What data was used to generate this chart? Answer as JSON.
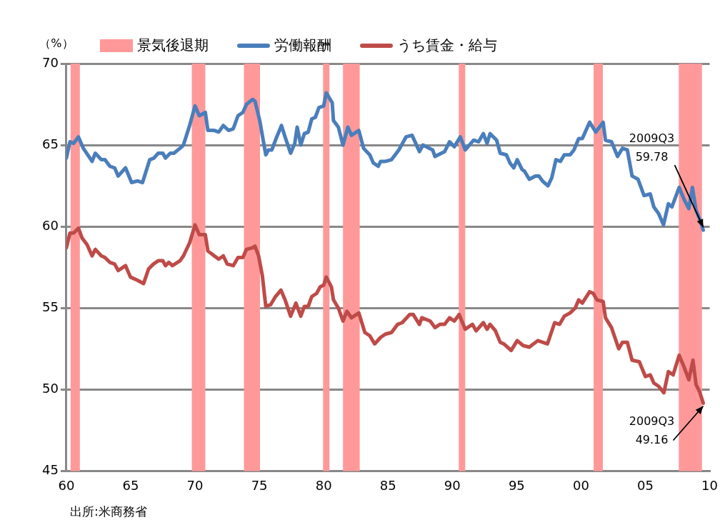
{
  "chart_data": {
    "type": "line",
    "ylabel": "（%）",
    "legend": "top",
    "grid": "y",
    "marker": "none",
    "line_style": "solid",
    "xlim": [
      1960,
      2010
    ],
    "xticks": [
      {
        "value": 1960,
        "label": "60"
      },
      {
        "value": 1965,
        "label": "65"
      },
      {
        "value": 1970,
        "label": "70"
      },
      {
        "value": 1975,
        "label": "75"
      },
      {
        "value": 1980,
        "label": "80"
      },
      {
        "value": 1985,
        "label": "85"
      },
      {
        "value": 1990,
        "label": "90"
      },
      {
        "value": 1995,
        "label": "95"
      },
      {
        "value": 2000,
        "label": "00"
      },
      {
        "value": 2005,
        "label": "05"
      },
      {
        "value": 2010,
        "label": "10"
      }
    ],
    "ylim": [
      45,
      70
    ],
    "yticks": [
      45,
      50,
      55,
      60,
      65,
      70
    ],
    "bands": [
      {
        "axis": "x",
        "from": 1960.33,
        "to": 1961.05,
        "label": "景気後退期",
        "color": "#ff9999"
      },
      {
        "axis": "x",
        "from": 1969.75,
        "to": 1970.8,
        "color": "#ff9999"
      },
      {
        "axis": "x",
        "from": 1973.8,
        "to": 1975.05,
        "color": "#ff9999"
      },
      {
        "axis": "x",
        "from": 1979.95,
        "to": 1980.45,
        "color": "#ff9999"
      },
      {
        "axis": "x",
        "from": 1981.5,
        "to": 1982.8,
        "color": "#ff9999"
      },
      {
        "axis": "x",
        "from": 1990.5,
        "to": 1991.0,
        "color": "#ff9999"
      },
      {
        "axis": "x",
        "from": 2000.98,
        "to": 2001.7,
        "color": "#ff9999"
      },
      {
        "axis": "x",
        "from": 2007.6,
        "to": 2009.4,
        "color": "#ff9999"
      }
    ],
    "series": [
      {
        "name": "労働報酬",
        "color": "#4a7ebb",
        "x": [
          1960.0,
          1960.28,
          1960.56,
          1960.94,
          1961.32,
          1962.0,
          1962.25,
          1962.72,
          1963.0,
          1963.38,
          1963.75,
          1964.03,
          1964.6,
          1965.07,
          1965.54,
          1965.92,
          1966.48,
          1966.8,
          1967.14,
          1967.5,
          1967.7,
          1968.08,
          1968.36,
          1968.83,
          1969.1,
          1969.58,
          1970.0,
          1970.33,
          1970.8,
          1971.0,
          1971.5,
          1971.84,
          1972.2,
          1972.6,
          1972.97,
          1973.34,
          1973.72,
          1974.0,
          1974.47,
          1974.66,
          1975.03,
          1975.5,
          1975.7,
          1975.97,
          1976.35,
          1976.72,
          1977.0,
          1977.43,
          1977.75,
          1977.94,
          1978.22,
          1978.5,
          1978.8,
          1979.07,
          1979.35,
          1979.63,
          1980.0,
          1980.2,
          1980.66,
          1980.76,
          1981.14,
          1981.5,
          1981.88,
          1982.16,
          1982.73,
          1983.1,
          1983.58,
          1983.86,
          1984.24,
          1984.43,
          1984.8,
          1985.27,
          1985.84,
          1986.4,
          1986.87,
          1987.44,
          1987.72,
          1988.47,
          1988.65,
          1989.4,
          1989.78,
          1990.15,
          1990.62,
          1991.0,
          1991.66,
          1992.04,
          1992.41,
          1992.7,
          1992.93,
          1993.44,
          1993.72,
          1994.2,
          1994.48,
          1994.77,
          1995.04,
          1995.42,
          1995.6,
          1995.98,
          1996.45,
          1996.73,
          1997.0,
          1997.43,
          1997.73,
          1998.05,
          1998.4,
          1998.7,
          1999.15,
          1999.45,
          1999.82,
          2000.1,
          2000.67,
          2001.15,
          2001.72,
          2001.9,
          2002.37,
          2002.84,
          2003.22,
          2003.6,
          2003.97,
          2004.43,
          2004.9,
          2005.38,
          2005.66,
          2006.03,
          2006.41,
          2006.79,
          2007.06,
          2007.63,
          2007.99,
          2008.38,
          2008.66,
          2008.94,
          2009.2,
          2009.5
        ],
        "values": [
          64.2,
          65.2,
          65.1,
          65.5,
          64.8,
          64.0,
          64.5,
          64.1,
          64.1,
          63.7,
          63.6,
          63.1,
          63.6,
          62.7,
          62.8,
          62.7,
          64.1,
          64.2,
          64.5,
          64.5,
          64.2,
          64.5,
          64.5,
          64.8,
          65.0,
          66.2,
          67.4,
          66.8,
          67.0,
          65.9,
          65.9,
          65.8,
          66.2,
          65.9,
          66.0,
          66.8,
          67.0,
          67.5,
          67.8,
          67.7,
          66.5,
          64.4,
          64.7,
          64.7,
          65.5,
          66.2,
          65.5,
          64.5,
          65.1,
          66.1,
          65.0,
          65.7,
          65.8,
          66.6,
          66.7,
          67.3,
          67.4,
          68.2,
          67.6,
          66.5,
          66.1,
          65.0,
          66.1,
          65.6,
          65.9,
          64.8,
          64.4,
          63.9,
          63.7,
          64.0,
          64.0,
          64.1,
          64.7,
          65.5,
          65.6,
          64.6,
          65.0,
          64.7,
          64.3,
          64.6,
          65.2,
          64.9,
          65.5,
          64.7,
          65.3,
          65.2,
          65.7,
          65.1,
          65.7,
          65.3,
          64.5,
          64.4,
          63.9,
          63.6,
          64.1,
          63.5,
          63.4,
          62.9,
          63.1,
          63.1,
          62.8,
          62.5,
          63.0,
          64.1,
          64.0,
          64.4,
          64.4,
          64.7,
          65.4,
          65.4,
          66.4,
          65.8,
          66.4,
          65.3,
          65.2,
          64.3,
          64.8,
          64.7,
          63.1,
          62.9,
          61.9,
          62.0,
          61.2,
          60.8,
          60.1,
          61.4,
          61.2,
          62.4,
          61.7,
          61.1,
          62.4,
          61.0,
          60.5,
          59.78
        ]
      },
      {
        "name": "うち賃金・給与",
        "color": "#be4b48",
        "x": [
          1960.0,
          1960.28,
          1960.56,
          1960.94,
          1961.22,
          1961.6,
          1962.0,
          1962.25,
          1962.72,
          1963.0,
          1963.38,
          1963.75,
          1964.03,
          1964.6,
          1964.98,
          1965.54,
          1966.0,
          1966.39,
          1966.77,
          1967.14,
          1967.5,
          1967.7,
          1967.96,
          1968.24,
          1968.83,
          1969.1,
          1969.58,
          1970.0,
          1970.33,
          1970.8,
          1971.0,
          1971.5,
          1971.84,
          1972.2,
          1972.5,
          1972.97,
          1973.34,
          1973.72,
          1974.0,
          1974.47,
          1974.66,
          1974.94,
          1975.23,
          1975.5,
          1975.87,
          1976.25,
          1976.68,
          1977.0,
          1977.43,
          1977.84,
          1978.22,
          1978.5,
          1978.8,
          1979.07,
          1979.45,
          1979.73,
          1980.0,
          1980.2,
          1980.6,
          1980.76,
          1981.14,
          1981.5,
          1981.8,
          1982.16,
          1982.73,
          1983.2,
          1983.58,
          1983.96,
          1984.43,
          1984.8,
          1985.27,
          1985.75,
          1986.1,
          1986.68,
          1986.96,
          1987.44,
          1987.63,
          1988.28,
          1988.65,
          1989.03,
          1989.4,
          1989.78,
          1990.15,
          1990.53,
          1991.0,
          1991.56,
          1991.85,
          1992.41,
          1992.7,
          1992.93,
          1993.35,
          1993.72,
          1994.0,
          1994.57,
          1995.04,
          1995.5,
          1995.98,
          1996.64,
          1997.39,
          1997.95,
          1998.33,
          1998.7,
          1999.15,
          1999.55,
          1999.82,
          2000.1,
          2000.67,
          2000.95,
          2001.24,
          2001.72,
          2001.9,
          2002.37,
          2002.93,
          2003.22,
          2003.6,
          2003.97,
          2004.53,
          2005.0,
          2005.38,
          2005.66,
          2006.03,
          2006.44,
          2006.79,
          2007.16,
          2007.63,
          2008.0,
          2008.38,
          2008.7,
          2008.94,
          2009.2,
          2009.5
        ],
        "values": [
          58.7,
          59.6,
          59.6,
          59.9,
          59.3,
          58.9,
          58.2,
          58.6,
          58.2,
          58.1,
          57.8,
          57.7,
          57.3,
          57.6,
          56.9,
          56.7,
          56.5,
          57.4,
          57.7,
          57.9,
          57.9,
          57.6,
          57.8,
          57.6,
          57.9,
          58.2,
          59.0,
          60.1,
          59.5,
          59.5,
          58.5,
          58.2,
          58.0,
          58.2,
          57.7,
          57.6,
          58.1,
          58.1,
          58.6,
          58.7,
          58.8,
          58.2,
          57.0,
          55.1,
          55.2,
          55.7,
          56.1,
          55.5,
          54.5,
          55.3,
          54.5,
          55.1,
          55.1,
          55.7,
          55.9,
          56.3,
          56.4,
          56.9,
          56.3,
          55.5,
          55.0,
          54.2,
          54.8,
          54.4,
          54.7,
          53.5,
          53.3,
          52.8,
          53.2,
          53.4,
          53.5,
          54.0,
          54.1,
          54.6,
          54.6,
          54.0,
          54.4,
          54.2,
          53.8,
          54.0,
          54.0,
          54.4,
          54.2,
          54.6,
          53.7,
          54.0,
          53.6,
          54.1,
          53.7,
          54.0,
          53.6,
          52.9,
          52.8,
          52.4,
          53.0,
          52.7,
          52.6,
          53.0,
          52.8,
          54.1,
          54.0,
          54.5,
          54.7,
          55.0,
          55.5,
          55.3,
          56.0,
          55.9,
          55.5,
          55.4,
          54.4,
          53.8,
          52.5,
          52.9,
          52.9,
          51.8,
          51.7,
          50.8,
          50.9,
          50.4,
          50.2,
          49.8,
          51.1,
          50.9,
          52.1,
          51.4,
          50.6,
          51.8,
          50.3,
          49.9,
          49.16
        ]
      }
    ],
    "annotations": [
      {
        "text": "2009Q3\n59.78",
        "x": 2009.5,
        "y": 59.78
      },
      {
        "text": "2009Q3\n49.16",
        "x": 2009.5,
        "y": 49.16
      },
      "出所:米商務省"
    ]
  }
}
